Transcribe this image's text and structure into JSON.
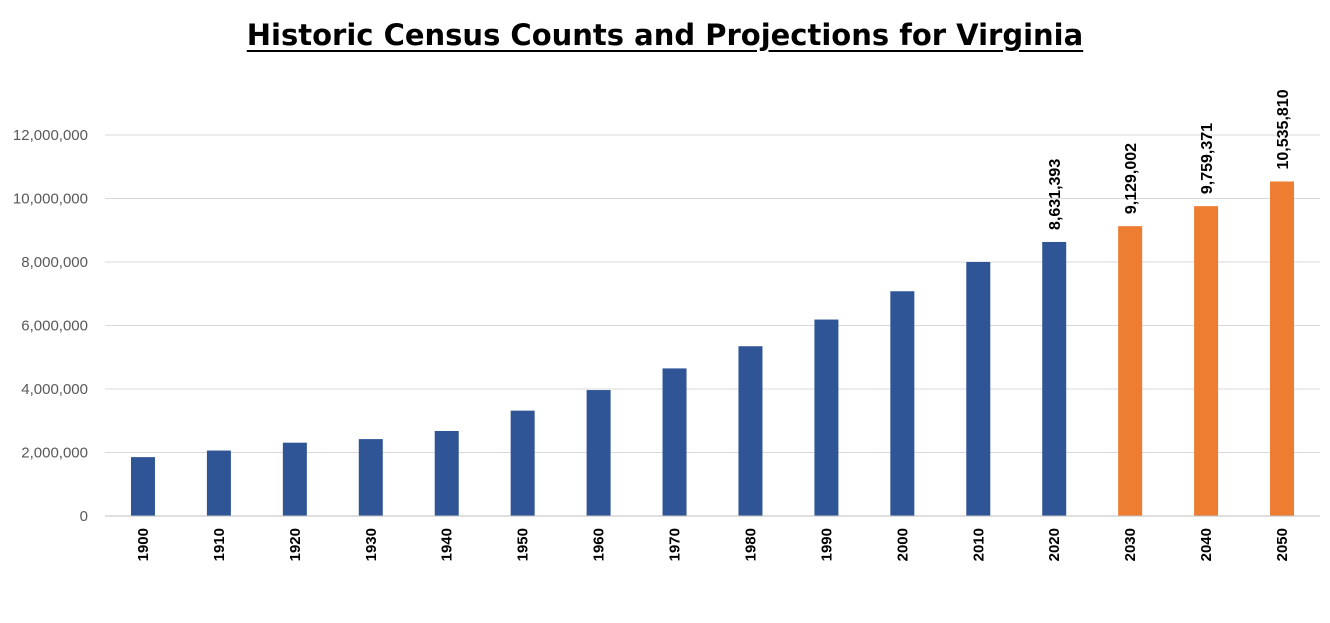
{
  "chart_data": {
    "type": "bar",
    "title": "Historic Census Counts and Projections for Virginia",
    "xlabel": "",
    "ylabel": "",
    "categories": [
      "1900",
      "1910",
      "1920",
      "1930",
      "1940",
      "1950",
      "1960",
      "1970",
      "1980",
      "1990",
      "2000",
      "2010",
      "2020",
      "2030",
      "2040",
      "2050"
    ],
    "values": [
      1854184,
      2061612,
      2309187,
      2421851,
      2677773,
      3318680,
      3966949,
      4648494,
      5346818,
      6187358,
      7078515,
      8001024,
      8631393,
      9129002,
      9759371,
      10535810
    ],
    "bar_colors": [
      "#2f5597",
      "#2f5597",
      "#2f5597",
      "#2f5597",
      "#2f5597",
      "#2f5597",
      "#2f5597",
      "#2f5597",
      "#2f5597",
      "#2f5597",
      "#2f5597",
      "#2f5597",
      "#2f5597",
      "#ed7d31",
      "#ed7d31",
      "#ed7d31"
    ],
    "data_labels": {
      "12": "8,631,393",
      "13": "9,129,002",
      "14": "9,759,371",
      "15": "10,535,810"
    },
    "ylim": [
      0,
      12000000
    ],
    "yticks": [
      0,
      2000000,
      4000000,
      6000000,
      8000000,
      10000000,
      12000000
    ],
    "ytick_labels": [
      "0",
      "2,000,000",
      "4,000,000",
      "6,000,000",
      "8,000,000",
      "10,000,000",
      "12,000,000"
    ],
    "grid": true,
    "legend": "none"
  }
}
